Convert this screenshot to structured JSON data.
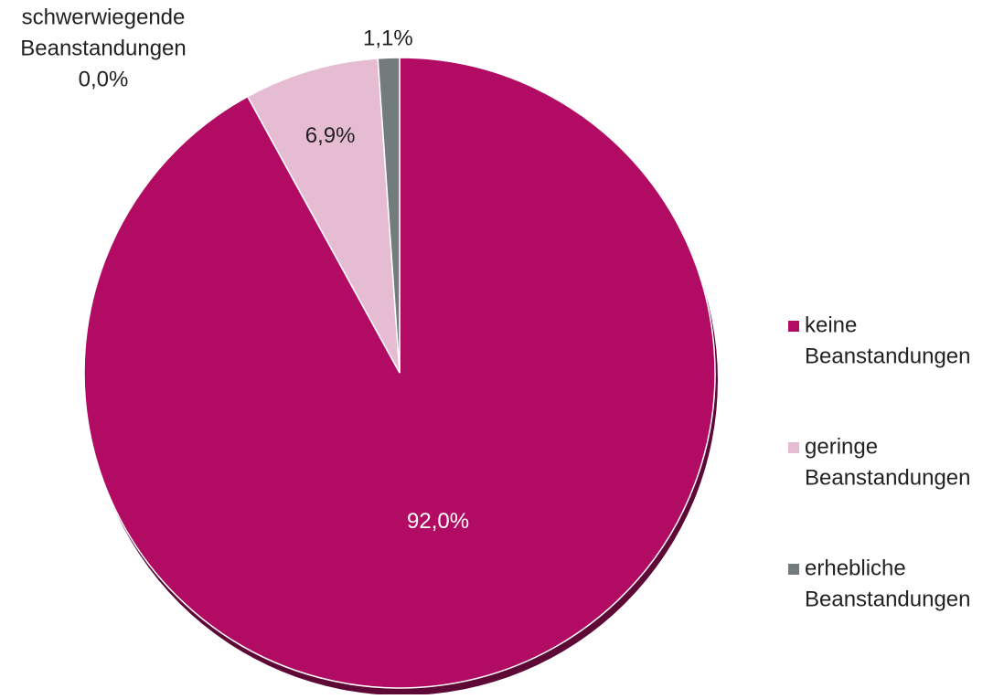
{
  "chart_data": {
    "type": "pie",
    "title": "",
    "categories": [
      "keine Beanstandungen",
      "geringe Beanstandungen",
      "erhebliche Beanstandungen",
      "schwerwiegende Beanstandungen"
    ],
    "values": [
      92.0,
      6.9,
      1.1,
      0.0
    ],
    "data_labels": [
      "92,0%",
      "6,9%",
      "1,1%",
      "0,0%"
    ],
    "colors": [
      "#b10b63",
      "#e6bcd3",
      "#737c7c",
      "#5a5a5a"
    ],
    "legend": {
      "position": "right",
      "entries": [
        {
          "lines": [
            "keine",
            "Beanstandungen"
          ],
          "color": "#b10b63"
        },
        {
          "lines": [
            "geringe",
            "Beanstandungen"
          ],
          "color": "#e6bcd3"
        },
        {
          "lines": [
            "erhebliche",
            "Beanstandungen"
          ],
          "color": "#737c7c"
        }
      ]
    },
    "callout_label": {
      "lines": [
        "schwerwiegende",
        "Beanstandungen",
        "0,0%"
      ]
    }
  }
}
